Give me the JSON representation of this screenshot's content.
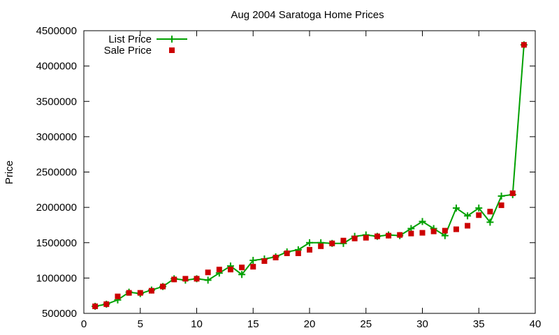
{
  "chart_data": {
    "type": "line",
    "title": "Aug 2004 Saratoga Home Prices",
    "xlabel": "",
    "ylabel": "Price",
    "xlim": [
      0,
      40
    ],
    "ylim": [
      500000,
      4500000
    ],
    "xticks": [
      0,
      5,
      10,
      15,
      20,
      25,
      30,
      35,
      40
    ],
    "yticks": [
      500000,
      1000000,
      1500000,
      2000000,
      2500000,
      3000000,
      3500000,
      4000000,
      4500000
    ],
    "grid": false,
    "legend": "top-left",
    "x": [
      1,
      2,
      3,
      4,
      5,
      6,
      7,
      8,
      9,
      10,
      11,
      12,
      13,
      14,
      15,
      16,
      17,
      18,
      19,
      20,
      21,
      22,
      23,
      24,
      25,
      26,
      27,
      28,
      29,
      30,
      31,
      32,
      33,
      34,
      35,
      36,
      37,
      38,
      39
    ],
    "series": [
      {
        "name": "List Price",
        "style": "line-points",
        "color": "#00a000",
        "values": [
          600000,
          630000,
          690000,
          800000,
          780000,
          830000,
          880000,
          990000,
          970000,
          990000,
          970000,
          1070000,
          1170000,
          1050000,
          1250000,
          1270000,
          1300000,
          1370000,
          1400000,
          1500000,
          1500000,
          1490000,
          1490000,
          1590000,
          1610000,
          1590000,
          1610000,
          1600000,
          1700000,
          1800000,
          1700000,
          1600000,
          1990000,
          1880000,
          1990000,
          1790000,
          2160000,
          2180000,
          4300000
        ]
      },
      {
        "name": "Sale Price",
        "style": "points",
        "color": "#cc0000",
        "values": [
          600000,
          630000,
          740000,
          790000,
          790000,
          820000,
          880000,
          980000,
          990000,
          990000,
          1080000,
          1120000,
          1120000,
          1150000,
          1160000,
          1240000,
          1290000,
          1350000,
          1350000,
          1400000,
          1450000,
          1490000,
          1530000,
          1560000,
          1570000,
          1590000,
          1600000,
          1610000,
          1630000,
          1640000,
          1660000,
          1670000,
          1690000,
          1740000,
          1890000,
          1940000,
          2030000,
          2200000,
          4300000
        ]
      }
    ]
  }
}
